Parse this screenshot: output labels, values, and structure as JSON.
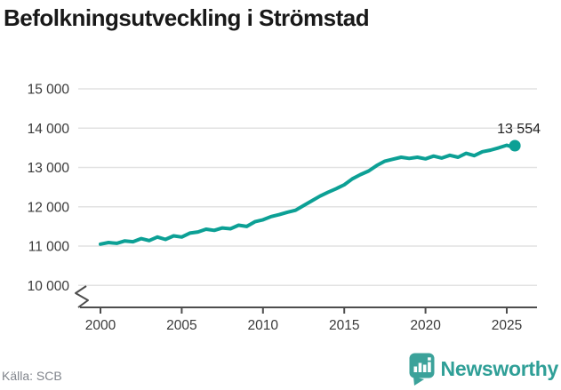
{
  "title": "Befolkningsutveckling i Strömstad",
  "footer": {
    "source": "Källa: SCB",
    "brand": "Newsworthy"
  },
  "colors": {
    "line": "#0ca095",
    "dot": "#0ca095",
    "grid": "#e2e2e2",
    "axis": "#4d4d4d",
    "tick_label": "#3a3a3a",
    "value_label": "#1f1f1f",
    "title": "#191919",
    "source_text": "#81858c",
    "brand_teal": "#3ba29a"
  },
  "chart_data": {
    "type": "line",
    "title": "Befolkningsutveckling i Strömstad",
    "series_name": "Befolkning",
    "xlabel": "",
    "ylabel": "",
    "xlim": [
      1998.6,
      2027
    ],
    "ylim": [
      9500,
      15000
    ],
    "axis_break": true,
    "grid": "horizontal",
    "legend": "none",
    "end_label": "13 554",
    "end_point": {
      "x": 2025.5,
      "y": 13554
    },
    "x_ticks": [
      {
        "v": 2000,
        "label": "2000"
      },
      {
        "v": 2005,
        "label": "2005"
      },
      {
        "v": 2010,
        "label": "2010"
      },
      {
        "v": 2015,
        "label": "2015"
      },
      {
        "v": 2020,
        "label": "2020"
      },
      {
        "v": 2025,
        "label": "2025"
      }
    ],
    "y_ticks": [
      {
        "v": 10000,
        "label": "10 000"
      },
      {
        "v": 11000,
        "label": "11 000"
      },
      {
        "v": 12000,
        "label": "12 000"
      },
      {
        "v": 13000,
        "label": "13 000"
      },
      {
        "v": 14000,
        "label": "14 000"
      },
      {
        "v": 15000,
        "label": "15 000"
      }
    ],
    "x": [
      2000,
      2000.5,
      2001,
      2001.5,
      2002,
      2002.5,
      2003,
      2003.5,
      2004,
      2004.5,
      2005,
      2005.5,
      2006,
      2006.5,
      2007,
      2007.5,
      2008,
      2008.5,
      2009,
      2009.5,
      2010,
      2010.5,
      2011,
      2011.5,
      2012,
      2012.5,
      2013,
      2013.5,
      2014,
      2014.5,
      2015,
      2015.5,
      2016,
      2016.5,
      2017,
      2017.5,
      2018,
      2018.5,
      2019,
      2019.5,
      2020,
      2020.5,
      2021,
      2021.5,
      2022,
      2022.5,
      2023,
      2023.5,
      2024,
      2024.5,
      2025,
      2025.25,
      2025.5
    ],
    "y": [
      11050,
      11090,
      11070,
      11130,
      11110,
      11190,
      11140,
      11230,
      11170,
      11260,
      11230,
      11330,
      11360,
      11430,
      11400,
      11460,
      11440,
      11530,
      11500,
      11620,
      11670,
      11750,
      11800,
      11860,
      11910,
      12030,
      12150,
      12270,
      12370,
      12460,
      12560,
      12710,
      12820,
      12910,
      13050,
      13160,
      13210,
      13260,
      13230,
      13260,
      13220,
      13290,
      13240,
      13310,
      13260,
      13360,
      13300,
      13400,
      13440,
      13500,
      13565,
      13530,
      13554
    ]
  }
}
